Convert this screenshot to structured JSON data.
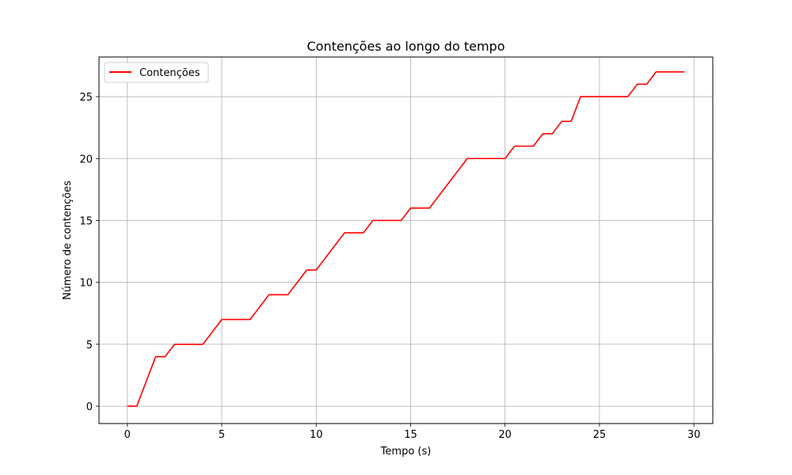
{
  "chart_data": {
    "type": "line",
    "title": "Contenções ao longo do tempo",
    "xlabel": "Tempo (s)",
    "ylabel": "Número de contenções",
    "xlim": [
      -1.5,
      31
    ],
    "ylim": [
      -1.4,
      28.2
    ],
    "xticks": [
      0,
      5,
      10,
      15,
      20,
      25,
      30
    ],
    "yticks": [
      0,
      5,
      10,
      15,
      20,
      25
    ],
    "grid": true,
    "legend_position": "top-left",
    "series": [
      {
        "name": "Contenções",
        "color": "#ff0000",
        "x": [
          0,
          0.5,
          1.5,
          2,
          2.5,
          4,
          5,
          6.5,
          7.5,
          8.5,
          9.5,
          10,
          11.5,
          12.5,
          13,
          14.5,
          15,
          16,
          18,
          20,
          20.5,
          21.5,
          22,
          22.5,
          23,
          23.5,
          24,
          26.5,
          27,
          27.5,
          28,
          29.5
        ],
        "y": [
          0,
          0,
          4,
          4,
          5,
          5,
          7,
          7,
          9,
          9,
          11,
          11,
          14,
          14,
          15,
          15,
          16,
          16,
          20,
          20,
          21,
          21,
          22,
          22,
          23,
          23,
          25,
          25,
          26,
          26,
          27,
          27
        ]
      }
    ]
  }
}
